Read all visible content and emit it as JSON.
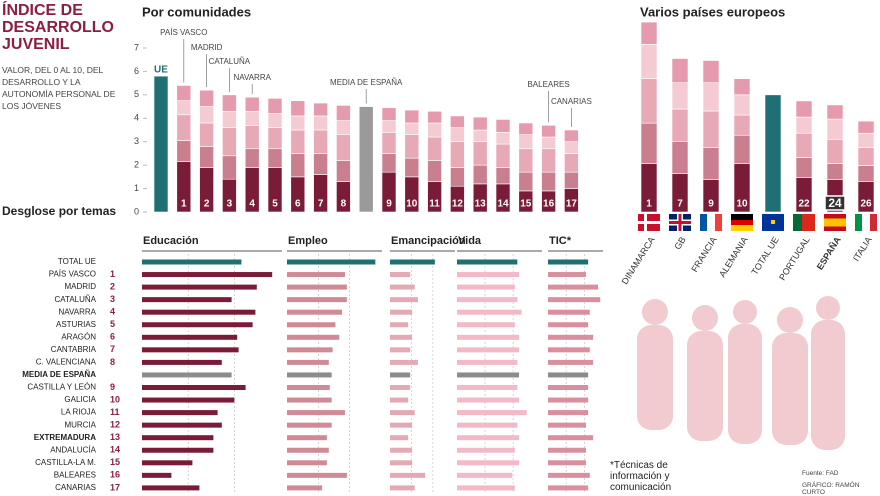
{
  "header": {
    "title": "ÍNDICE DE DESARROLLO JUVENIL",
    "subtitle": "VALOR, DEL 0 AL 10, DEL DESARROLLO Y LA AUTONOMÍA PERSONAL DE LOS JÓVENES"
  },
  "chart_data": [
    {
      "type": "stacked-bar",
      "title": "Por comunidades",
      "categories": [
        null,
        "1",
        "2",
        "3",
        "4",
        "5",
        "6",
        "7",
        "8",
        null,
        "9",
        "10",
        "11",
        "12",
        "13",
        "14",
        "15",
        "16",
        "17"
      ],
      "labels_above": [
        "UE",
        "PAÍS VASCO",
        "MADRID",
        "CATALUÑA",
        "NAVARRA",
        null,
        null,
        null,
        null,
        "MEDIA DE ESPAÑA",
        null,
        null,
        null,
        null,
        null,
        null,
        null,
        "BALEARES",
        "CANARIAS"
      ],
      "ylim": [
        0,
        7
      ],
      "yticks": [
        0,
        1,
        2,
        3,
        4,
        5,
        6,
        7
      ],
      "series": [
        {
          "color": "#7a1c38",
          "values": [
            null,
            2.15,
            1.9,
            1.4,
            1.9,
            1.9,
            1.5,
            1.6,
            1.3,
            null,
            1.7,
            1.5,
            1.3,
            1.1,
            1.2,
            1.2,
            0.9,
            0.9,
            1.0
          ]
        },
        {
          "color": "#c97f8e",
          "values": [
            null,
            0.9,
            0.9,
            1.0,
            0.8,
            0.8,
            1.0,
            0.9,
            0.9,
            null,
            0.8,
            0.8,
            0.9,
            0.8,
            0.8,
            0.7,
            0.8,
            0.8,
            0.7
          ]
        },
        {
          "color": "#e8a9b7",
          "values": [
            null,
            1.1,
            1.0,
            1.2,
            1.0,
            0.9,
            1.0,
            1.0,
            1.1,
            null,
            0.9,
            1.0,
            1.0,
            1.1,
            1.0,
            1.0,
            1.0,
            1.0,
            0.8
          ]
        },
        {
          "color": "#f4cbd3",
          "values": [
            null,
            0.6,
            0.7,
            0.7,
            0.6,
            0.6,
            0.6,
            0.6,
            0.6,
            null,
            0.5,
            0.5,
            0.6,
            0.6,
            0.5,
            0.5,
            0.6,
            0.5,
            0.5
          ]
        },
        {
          "color": "#e59aad",
          "values": [
            null,
            0.65,
            0.7,
            0.7,
            0.6,
            0.65,
            0.65,
            0.55,
            0.65,
            null,
            0.55,
            0.55,
            0.5,
            0.5,
            0.55,
            0.55,
            0.5,
            0.5,
            0.5
          ]
        },
        {
          "color": "#1f6f75",
          "values": [
            5.8,
            null,
            null,
            null,
            null,
            null,
            null,
            null,
            null,
            null,
            null,
            null,
            null,
            null,
            null,
            null,
            null,
            null,
            null
          ]
        },
        {
          "color": "#9a9a9a",
          "values": [
            null,
            null,
            null,
            null,
            null,
            null,
            null,
            null,
            null,
            4.5,
            null,
            null,
            null,
            null,
            null,
            null,
            null,
            null,
            null
          ]
        }
      ]
    },
    {
      "type": "stacked-bar",
      "title": "Varios países europeos",
      "categories": [
        "1",
        "7",
        "9",
        "10",
        null,
        "22",
        "24",
        "26"
      ],
      "labels_below": [
        "DINAMARCA",
        "GB",
        "FRANCIA",
        "ALEMANIA",
        "TOTAL UE",
        "PORTUGAL",
        "ESPAÑA",
        "ITALIA"
      ],
      "highlight": "ESPAÑA",
      "ylim": [
        0,
        10
      ],
      "series": [
        {
          "color": "#7a1c38",
          "values": [
            2.4,
            1.9,
            1.6,
            2.4,
            null,
            1.7,
            1.6,
            1.5
          ]
        },
        {
          "color": "#c97f8e",
          "values": [
            2.0,
            1.6,
            1.6,
            1.4,
            null,
            1.0,
            0.8,
            0.8
          ]
        },
        {
          "color": "#e8a9b7",
          "values": [
            2.2,
            1.6,
            1.8,
            1.0,
            null,
            1.2,
            1.2,
            0.9
          ]
        },
        {
          "color": "#f4cbd3",
          "values": [
            1.7,
            1.3,
            1.4,
            1.0,
            null,
            0.8,
            1.0,
            0.7
          ]
        },
        {
          "color": "#e59aad",
          "values": [
            1.1,
            1.2,
            1.1,
            0.8,
            null,
            0.8,
            0.7,
            0.6
          ]
        },
        {
          "color": "#1f6f75",
          "values": [
            null,
            null,
            null,
            null,
            5.8,
            null,
            null,
            null
          ]
        }
      ]
    },
    {
      "type": "hbar-panels",
      "title": "Desglose por temas",
      "categories": [
        "TOTAL UE",
        "PAÍS VASCO",
        "MADRID",
        "CATALUÑA",
        "NAVARRA",
        "ASTURIAS",
        "ARAGÓN",
        "CANTABRIA",
        "C. VALENCIANA",
        "MEDIA DE ESPAÑA",
        "CASTILLA Y LEÓN",
        "GALICIA",
        "LA RIOJA",
        "MURCIA",
        "EXTREMADURA",
        "ANDALUCÍA",
        "CASTILLA-LA M.",
        "BALEARES",
        "CANARIAS"
      ],
      "ranks": [
        null,
        1,
        2,
        3,
        4,
        5,
        6,
        7,
        8,
        null,
        9,
        10,
        11,
        12,
        13,
        14,
        15,
        16,
        17
      ],
      "bold": [
        "MEDIA DE ESPAÑA",
        "EXTREMADURA"
      ],
      "total_row": "TOTAL UE",
      "average_row": "MEDIA DE ESPAÑA",
      "total_color": "#1f6f75",
      "average_color": "#8c8c8c",
      "xlim": [
        0,
        10
      ],
      "series": [
        {
          "name": "Educación",
          "color": "#7a1c38",
          "values": [
            7.1,
            9.3,
            8.2,
            6.4,
            8.1,
            7.9,
            6.8,
            6.9,
            5.7,
            6.4,
            7.4,
            6.6,
            5.4,
            5.7,
            5.1,
            5.1,
            3.6,
            2.1,
            4.1
          ]
        },
        {
          "name": "Empleo",
          "color": "#cf8a96",
          "values": [
            9.3,
            6.1,
            6.3,
            6.3,
            5.8,
            5.1,
            5.5,
            4.8,
            4.4,
            4.7,
            4.5,
            4.7,
            6.1,
            4.7,
            4.2,
            4.4,
            4.2,
            6.3,
            3.7
          ]
        },
        {
          "name": "Emancipación",
          "color": "#e3aab5",
          "values": [
            6.9,
            3.1,
            3.8,
            4.3,
            3.4,
            2.8,
            3.4,
            3.1,
            4.3,
            3.1,
            3.1,
            2.8,
            3.8,
            3.4,
            2.8,
            3.4,
            3.4,
            5.4,
            3.8
          ]
        },
        {
          "name": "Vida",
          "color": "#f3b9c7",
          "values": [
            7.1,
            7.3,
            6.8,
            7.1,
            7.6,
            6.8,
            7.3,
            7.3,
            7.1,
            7.3,
            7.1,
            7.3,
            8.2,
            7.1,
            7.3,
            6.8,
            7.3,
            6.5,
            6.8
          ]
        },
        {
          "name": "TIC*",
          "color": "#d98f9e",
          "values": [
            7.3,
            6.9,
            9.1,
            9.5,
            7.6,
            7.3,
            8.2,
            7.6,
            8.2,
            7.3,
            7.3,
            7.3,
            7.3,
            6.9,
            8.2,
            6.9,
            6.9,
            7.6,
            7.3
          ]
        }
      ]
    }
  ],
  "footer": {
    "note": "*Técnicas de información y comunicación",
    "source": "Fuente: FAD",
    "credit": "GRÁFICO: RAMÓN CURTO"
  }
}
